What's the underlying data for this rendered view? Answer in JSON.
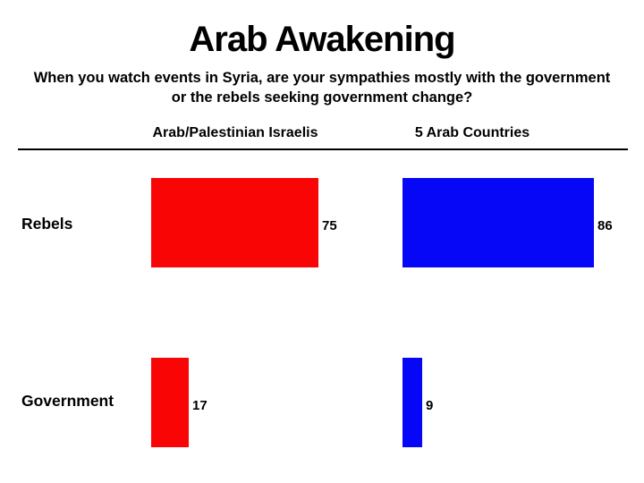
{
  "slide": {
    "title": "Arab Awakening",
    "subtitle_line1": "When you watch events in Syria, are your sympathies mostly with the government",
    "subtitle_line2": "or the rebels seeking government change?",
    "columns": [
      {
        "label": "Arab/Palestinian Israelis"
      },
      {
        "label": "5 Arab Countries"
      }
    ],
    "rows": [
      {
        "label": "Rebels",
        "left_value": "75",
        "right_value": "86"
      },
      {
        "label": "Government",
        "left_value": "17",
        "right_value": "9"
      }
    ],
    "colors": {
      "left_bar": "#fa0505",
      "right_bar": "#0707f7",
      "text": "#000000",
      "background": "#ffffff"
    }
  },
  "chart_data": {
    "type": "bar",
    "orientation": "horizontal",
    "title": "Arab Awakening",
    "subtitle": "When you watch events in Syria, are your sympathies mostly with the government or the rebels seeking government change?",
    "categories": [
      "Rebels",
      "Government"
    ],
    "series": [
      {
        "name": "Arab/Palestinian Israelis",
        "color": "#fa0505",
        "values": [
          75,
          17
        ]
      },
      {
        "name": "5 Arab Countries",
        "color": "#0707f7",
        "values": [
          86,
          9
        ]
      }
    ],
    "xlim": [
      0,
      100
    ],
    "grid": false,
    "value_labels_shown": true,
    "legend_position": "column-headers-above-chart"
  }
}
